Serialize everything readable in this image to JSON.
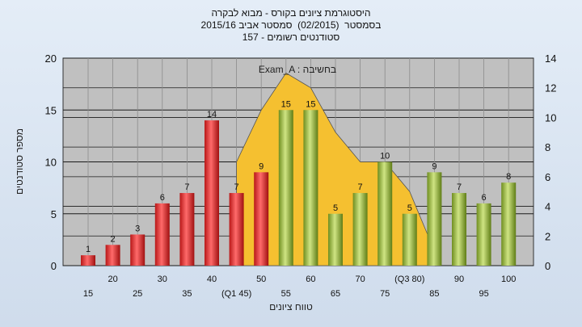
{
  "header": {
    "title": "היסטוגרמת ציונים בקורס - מבוא לבקרה",
    "semester": "בסמסטר  (02/2015)  סמסטר אביב 2015/16",
    "registered": "סטודנטים רשומים - 157"
  },
  "chart_data": {
    "type": "bar",
    "categories": [
      "15",
      "20",
      "25",
      "30",
      "35",
      "40",
      "(Q1 45)",
      "50",
      "55",
      "60",
      "65",
      "70",
      "75",
      "(Q3 80)",
      "85",
      "90",
      "95",
      "100"
    ],
    "values": [
      1,
      2,
      3,
      6,
      7,
      14,
      7,
      9,
      15,
      15,
      5,
      7,
      10,
      5,
      9,
      7,
      6,
      8
    ],
    "series": [
      {
        "values": [
          1,
          2,
          3,
          6,
          7,
          14,
          7,
          9,
          15,
          15,
          5,
          7,
          10,
          5,
          9,
          7,
          6,
          8
        ]
      }
    ],
    "bar_colors": [
      "red",
      "red",
      "red",
      "red",
      "red",
      "red",
      "red",
      "red",
      "green",
      "green",
      "green",
      "green",
      "green",
      "green",
      "green",
      "green",
      "green",
      "green"
    ],
    "area_series": {
      "x_categories": [
        "(Q1 45)",
        "50",
        "55",
        "60",
        "65",
        "70",
        "75",
        "(Q3 80)",
        "85"
      ],
      "values": [
        7.0,
        10.5,
        13.0,
        12.0,
        9.0,
        7.0,
        7.0,
        5.0,
        1.0
      ]
    },
    "ylabel": "מספר סטודנטים",
    "xlabel": "טווח ציונים",
    "ylim": [
      0,
      20
    ],
    "yticks": [
      0,
      5,
      10,
      15,
      20
    ],
    "y2lim": [
      0,
      14
    ],
    "y2ticks": [
      0,
      2,
      4,
      6,
      8,
      10,
      12,
      14
    ],
    "grid": true,
    "annotation": "Exam_A : בחשיבה",
    "colors": {
      "red_bar": "#e03030",
      "green_bar": "#93b43c",
      "area": "#f5c030",
      "plot_bg": "#c0c0c0",
      "grid": "#1a1a1a"
    }
  }
}
